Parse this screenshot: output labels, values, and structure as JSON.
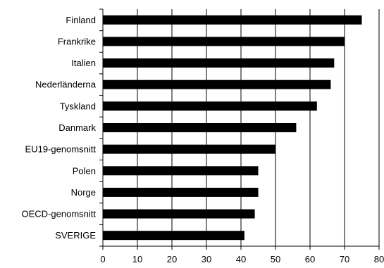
{
  "chart_data": {
    "type": "bar",
    "orientation": "horizontal",
    "categories": [
      "Finland",
      "Frankrike",
      "Italien",
      "Nederländerna",
      "Tyskland",
      "Danmark",
      "EU19-genomsnitt",
      "Polen",
      "Norge",
      "OECD-genomsnitt",
      "SVERIGE"
    ],
    "values": [
      75,
      70,
      67,
      66,
      62,
      56,
      50,
      45,
      45,
      44,
      41
    ],
    "title": "",
    "xlabel": "",
    "ylabel": "",
    "xlim": [
      0,
      80
    ],
    "xticks": [
      "0",
      "10",
      "20",
      "30",
      "40",
      "50",
      "60",
      "70",
      "80"
    ],
    "grid": "vertical",
    "bar_color": "#000000"
  }
}
